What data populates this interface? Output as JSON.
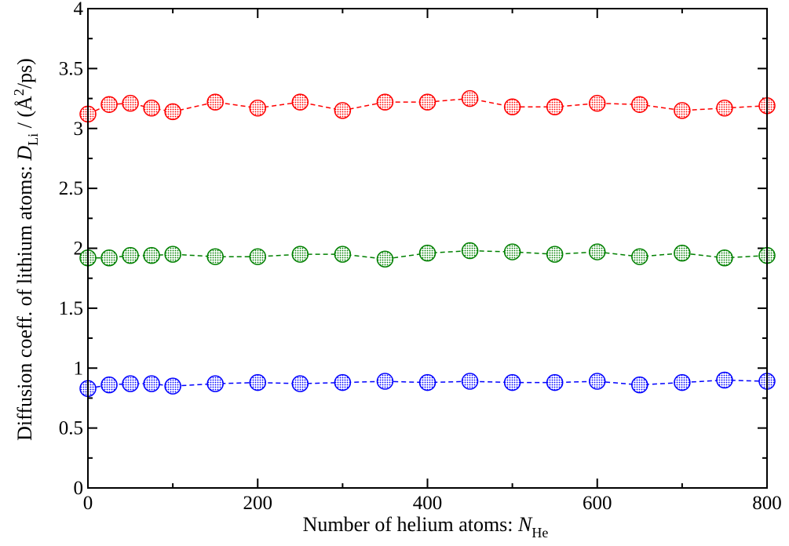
{
  "chart_data": {
    "type": "scatter",
    "x_label": {
      "main": "Number of helium atoms: ",
      "var": "N",
      "sub": "He"
    },
    "y_label": {
      "main": "Diffusion coeff. of lithium atoms: ",
      "var": "D",
      "sub": "Li",
      "tail": " / (Å",
      "sup": "2",
      "end": "/ps)"
    },
    "xlim": [
      0,
      800
    ],
    "ylim": [
      0,
      4
    ],
    "x_ticks": [
      0,
      200,
      400,
      600,
      800
    ],
    "x_tick_labels": [
      "0",
      "200",
      "400",
      "600",
      "800"
    ],
    "y_ticks": [
      0,
      0.5,
      1,
      1.5,
      2,
      2.5,
      3,
      3.5,
      4
    ],
    "y_tick_labels": [
      "0",
      "0.5",
      "1",
      "1.5",
      "2",
      "2.5",
      "3",
      "3.5",
      "4"
    ],
    "grid": false,
    "x": [
      0,
      25,
      50,
      75,
      100,
      150,
      200,
      250,
      300,
      350,
      400,
      450,
      500,
      550,
      600,
      650,
      700,
      750,
      800
    ],
    "series": [
      {
        "color": "#ff0000",
        "fill": "#f4c2c2",
        "line": "dashed",
        "marker": "circle",
        "values": [
          3.12,
          3.2,
          3.21,
          3.17,
          3.14,
          3.22,
          3.17,
          3.22,
          3.15,
          3.22,
          3.22,
          3.25,
          3.18,
          3.18,
          3.21,
          3.2,
          3.15,
          3.17,
          3.19
        ]
      },
      {
        "color": "#008000",
        "fill": "#b8dcb8",
        "line": "dashed",
        "marker": "circle",
        "values": [
          1.92,
          1.92,
          1.94,
          1.94,
          1.95,
          1.93,
          1.93,
          1.95,
          1.95,
          1.91,
          1.96,
          1.98,
          1.97,
          1.95,
          1.97,
          1.93,
          1.96,
          1.92,
          1.94
        ]
      },
      {
        "color": "#0000ff",
        "fill": "#bcbcf0",
        "line": "dashed",
        "marker": "circle",
        "values": [
          0.83,
          0.86,
          0.87,
          0.87,
          0.85,
          0.87,
          0.88,
          0.87,
          0.88,
          0.89,
          0.88,
          0.89,
          0.88,
          0.88,
          0.89,
          0.86,
          0.88,
          0.9,
          0.89
        ]
      }
    ]
  }
}
